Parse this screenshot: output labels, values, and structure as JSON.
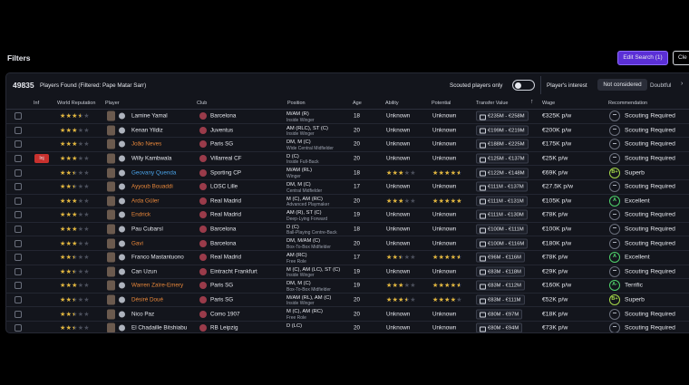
{
  "header": {
    "title": "Filters",
    "edit_search": "Edit Search (1)",
    "clear": "Cle"
  },
  "summary": {
    "count": 49835,
    "found": "Players Found (Filtered: Pape Matar Sarr)",
    "scouted_only": "Scouted players only",
    "interest_label": "Player's interest",
    "interest_options": [
      "Not considered",
      "Doubtful"
    ]
  },
  "columns": [
    "Inf",
    "World Reputation",
    "Player",
    "Club",
    "Position",
    "Age",
    "Ability",
    "Potential",
    "Transfer Value",
    "Wage",
    "Recommendation"
  ],
  "rows": [
    {
      "reputation": 3.5,
      "player": "Lamine Yamal",
      "club": "Barcelona",
      "position": "M/AM (R)",
      "role": "Inside Winger",
      "age": 18,
      "ability": "Unknown",
      "potential": "Unknown",
      "transfer_value": "€235M - €258M",
      "wage": "€325K p/w",
      "recommendation": "Scouting Required"
    },
    {
      "reputation": 3,
      "player": "Kenan Yildiz",
      "club": "Juventus",
      "position": "AM (RLC), ST (C)",
      "role": "Inside Winger",
      "age": 20,
      "ability": "Unknown",
      "potential": "Unknown",
      "transfer_value": "€199M - €219M",
      "wage": "€200K p/w",
      "recommendation": "Scouting Required"
    },
    {
      "reputation": 3,
      "player": "João Neves",
      "name_color": "#e8873a",
      "club": "Paris SG",
      "position": "DM, M (C)",
      "role": "Wide Central Midfielder",
      "age": 20,
      "ability": "Unknown",
      "potential": "Unknown",
      "transfer_value": "€188M - €225M",
      "wage": "€175K p/w",
      "recommendation": "Scouting Required"
    },
    {
      "inf": "Inj",
      "reputation": 3,
      "player": "Willy Kambwala",
      "club": "Villarreal CF",
      "position": "D (C)",
      "role": "Inside Full-Back",
      "age": 20,
      "ability": "Unknown",
      "potential": "Unknown",
      "transfer_value": "€125M - €137M",
      "wage": "€25K p/w",
      "recommendation": "Scouting Required"
    },
    {
      "reputation": 2.5,
      "player": "Geovany Quenda",
      "name_color": "#4aa3e8",
      "club": "Sporting CP",
      "position": "M/AM (RL)",
      "role": "Winger",
      "age": 18,
      "ability": 3,
      "potential": 4.5,
      "transfer_value": "€122M - €148M",
      "wage": "€69K p/w",
      "grade": "B+",
      "recommendation": "Superb"
    },
    {
      "reputation": 2.5,
      "player": "Ayyoub Bouaddi",
      "name_color": "#e8873a",
      "club": "LOSC Lille",
      "position": "DM, M (C)",
      "role": "Central Midfielder",
      "age": 17,
      "ability": "Unknown",
      "potential": "Unknown",
      "transfer_value": "€111M - €137M",
      "wage": "€27.5K p/w",
      "recommendation": "Scouting Required"
    },
    {
      "reputation": 3,
      "player": "Arda Güler",
      "name_color": "#e8873a",
      "club": "Real Madrid",
      "position": "M (C), AM (RC)",
      "role": "Advanced Playmaker",
      "age": 20,
      "ability": 3,
      "potential": 5,
      "transfer_value": "€111M - €131M",
      "wage": "€105K p/w",
      "grade": "A",
      "recommendation": "Excellent"
    },
    {
      "reputation": 3,
      "player": "Endrick",
      "name_color": "#e8873a",
      "club": "Real Madrid",
      "position": "AM (R), ST (C)",
      "role": "Deep-Lying Forward",
      "age": 19,
      "ability": "Unknown",
      "potential": "Unknown",
      "transfer_value": "€111M - €130M",
      "wage": "€78K p/w",
      "recommendation": "Scouting Required"
    },
    {
      "reputation": 3,
      "player": "Pau Cubarsí",
      "club": "Barcelona",
      "position": "D (C)",
      "role": "Ball-Playing Centre-Back",
      "age": 18,
      "ability": "Unknown",
      "potential": "Unknown",
      "transfer_value": "€100M - €111M",
      "wage": "€100K p/w",
      "recommendation": "Scouting Required"
    },
    {
      "reputation": 3,
      "player": "Gavi",
      "name_color": "#e8873a",
      "club": "Barcelona",
      "position": "DM, M/AM (C)",
      "role": "Box-To-Box Midfielder",
      "age": 20,
      "ability": "Unknown",
      "potential": "Unknown",
      "transfer_value": "€100M - €116M",
      "wage": "€180K p/w",
      "recommendation": "Scouting Required"
    },
    {
      "reputation": 2.5,
      "player": "Franco Mastantuono",
      "club": "Real Madrid",
      "position": "AM (RC)",
      "role": "Free Role",
      "age": 17,
      "ability": 2.5,
      "potential": 4.5,
      "transfer_value": "€96M - €116M",
      "wage": "€78K p/w",
      "grade": "A",
      "recommendation": "Excellent"
    },
    {
      "reputation": 2.5,
      "player": "Can Uzun",
      "club": "Eintracht Frankfurt",
      "position": "M (C), AM (LC), ST (C)",
      "role": "Inside Winger",
      "age": 19,
      "ability": "Unknown",
      "potential": "Unknown",
      "transfer_value": "€83M - €118M",
      "wage": "€29K p/w",
      "recommendation": "Scouting Required"
    },
    {
      "reputation": 3,
      "player": "Warren Zaïre-Emery",
      "name_color": "#e8873a",
      "club": "Paris SG",
      "position": "DM, M (C)",
      "role": "Box-To-Box Midfielder",
      "age": 19,
      "ability": 3,
      "potential": 4.5,
      "transfer_value": "€83M - €112M",
      "wage": "€160K p/w",
      "grade": "A-",
      "recommendation": "Terrific"
    },
    {
      "reputation": 2.5,
      "player": "Désiré Doué",
      "name_color": "#e8873a",
      "club": "Paris SG",
      "position": "M/AM (RL), AM (C)",
      "role": "Inside Winger",
      "age": 20,
      "ability": 3.5,
      "potential": 4,
      "transfer_value": "€83M - €111M",
      "wage": "€52K p/w",
      "grade": "B+",
      "recommendation": "Superb"
    },
    {
      "reputation": 2.5,
      "player": "Nico Paz",
      "club": "Como 1907",
      "position": "M (C), AM (RC)",
      "role": "Free Role",
      "age": 20,
      "ability": "Unknown",
      "potential": "Unknown",
      "transfer_value": "€80M - €97M",
      "wage": "€18K p/w",
      "recommendation": "Scouting Required"
    },
    {
      "reputation": 2.5,
      "player": "El Chadaille Bitshiabu",
      "club": "RB Leipzig",
      "position": "D (LC)",
      "age": 20,
      "ability": "Unknown",
      "potential": "Unknown",
      "transfer_value": "€80M - €94M",
      "wage": "€73K p/w",
      "recommendation": "Scouting Required"
    }
  ]
}
